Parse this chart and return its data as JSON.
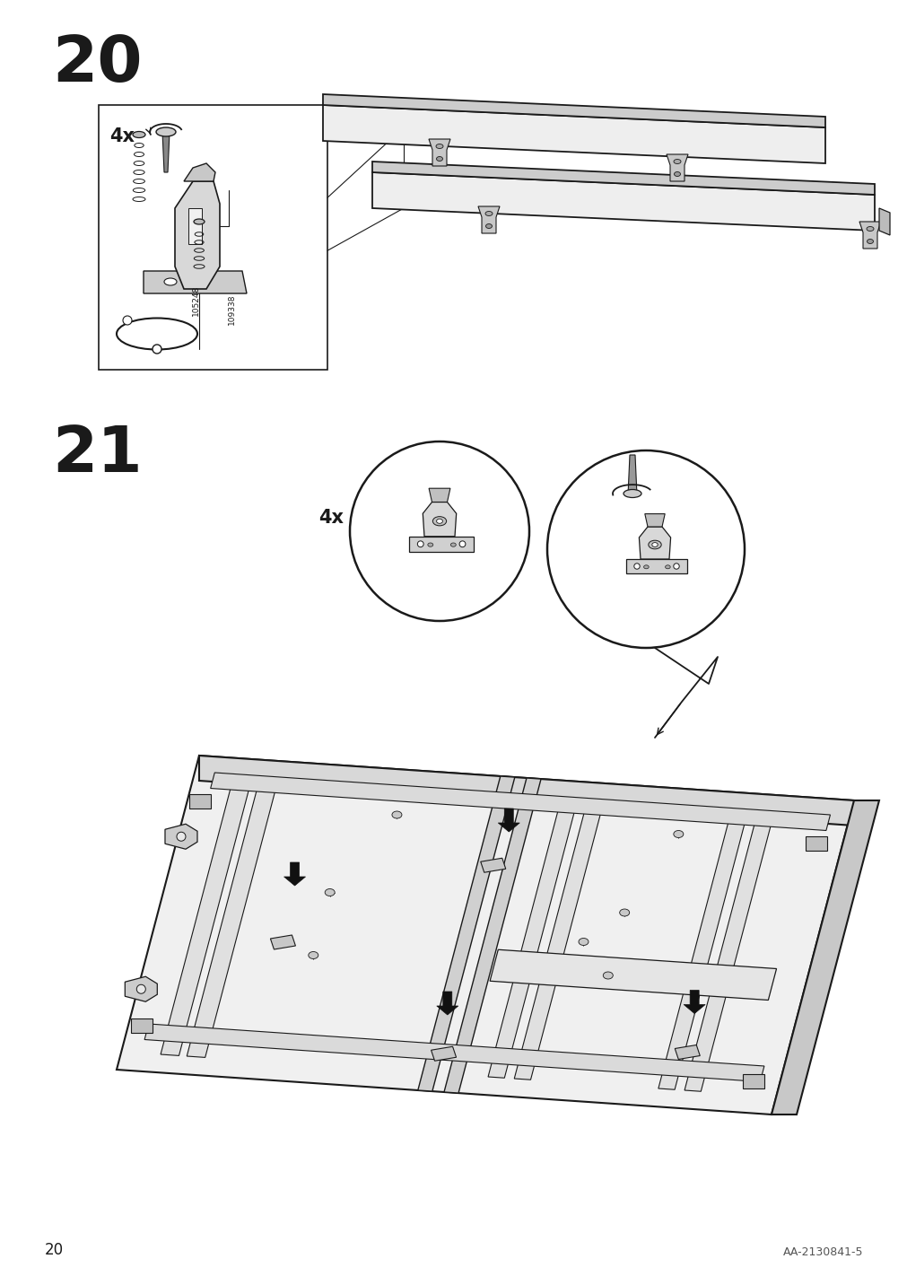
{
  "page_number": "20",
  "doc_id": "AA-2130841-5",
  "step_numbers": [
    "20",
    "21"
  ],
  "step_number_fontsize": 52,
  "page_num_fontsize": 12,
  "doc_id_fontsize": 9,
  "background_color": "#ffffff",
  "line_color": "#1a1a1a",
  "label_105248": "105248",
  "label_109338": "109338",
  "label_4x_step20": "4x",
  "label_4x_step21": "4x"
}
